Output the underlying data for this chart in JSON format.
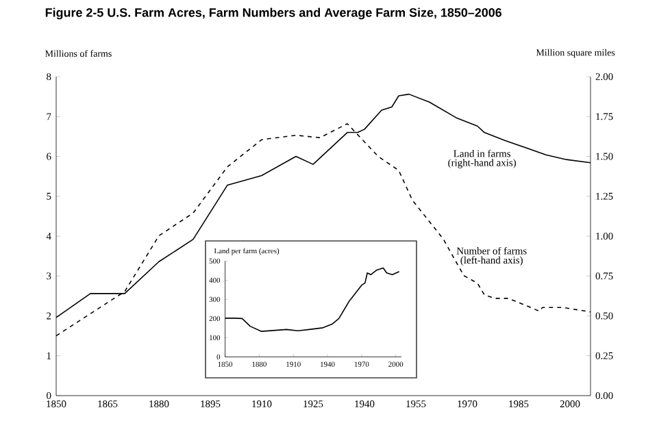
{
  "chart_data": [
    {
      "type": "line",
      "title": "Figure 2-5    U.S. Farm Acres, Farm Numbers and Average Farm Size, 1850–2006",
      "ylabel": "Millions of farms",
      "y2label": "Million square miles",
      "xlim": [
        1850,
        2006
      ],
      "xticks": [
        1850,
        1865,
        1880,
        1895,
        1910,
        1925,
        1940,
        1955,
        1970,
        1985,
        2000
      ],
      "ylim": [
        0,
        8
      ],
      "yticks": [
        0,
        1,
        2,
        3,
        4,
        5,
        6,
        7,
        8
      ],
      "y2lim": [
        0,
        2
      ],
      "y2ticks": [
        {
          "value": 0,
          "label": "0.00"
        },
        {
          "value": 0.25,
          "label": "0.25"
        },
        {
          "value": 0.5,
          "label": "0.50"
        },
        {
          "value": 0.75,
          "label": "0.75"
        },
        {
          "value": 1,
          "label": "1.00"
        },
        {
          "value": 1.25,
          "label": "1.25"
        },
        {
          "value": 1.5,
          "label": "1.50"
        },
        {
          "value": 1.75,
          "label": "1.75"
        },
        {
          "value": 2,
          "label": "2.00"
        }
      ],
      "annotations": [
        "(right-hand axis)",
        "(left-hand axis)"
      ],
      "series": [
        {
          "name": "Land in farms",
          "color": "#000000",
          "axis": "y2",
          "line_style": "solid",
          "x": [
            1850,
            1860,
            1870,
            1880,
            1890,
            1900,
            1910,
            1920,
            1925,
            1935,
            1938,
            1940,
            1945,
            1948,
            1950,
            1953,
            1959,
            1967,
            1973,
            1975,
            1981,
            1993,
            1999,
            2006
          ],
          "values": [
            0.49,
            0.64,
            0.64,
            0.84,
            0.98,
            1.32,
            1.38,
            1.5,
            1.45,
            1.65,
            1.65,
            1.67,
            1.79,
            1.81,
            1.88,
            1.89,
            1.84,
            1.74,
            1.69,
            1.65,
            1.6,
            1.51,
            1.48,
            1.46
          ]
        },
        {
          "name": "Number of farms",
          "color": "#000000",
          "axis": "y",
          "line_style": "dashed",
          "x": [
            1850,
            1870,
            1880,
            1890,
            1900,
            1910,
            1920,
            1927,
            1935,
            1944,
            1950,
            1954,
            1963,
            1969,
            1973,
            1975,
            1978,
            1982,
            1988,
            1991,
            1992,
            1998,
            2006
          ],
          "values": [
            1.5,
            2.61,
            4.01,
            4.58,
            5.74,
            6.42,
            6.53,
            6.47,
            6.82,
            6.0,
            5.65,
            4.9,
            3.93,
            3.01,
            2.82,
            2.53,
            2.44,
            2.44,
            2.23,
            2.12,
            2.21,
            2.21,
            2.1
          ]
        }
      ]
    },
    {
      "type": "line",
      "ylabel": "Land per farm (acres)",
      "xlim": [
        1850,
        2005
      ],
      "xticks": [
        1850,
        1880,
        1910,
        1940,
        1970,
        2000
      ],
      "ylim": [
        0,
        500
      ],
      "yticks": [
        0,
        100,
        200,
        300,
        400,
        500
      ],
      "series": [
        {
          "color": "#000000",
          "line_style": "solid",
          "x": [
            1850,
            1859,
            1865,
            1872,
            1882,
            1904,
            1914,
            1924,
            1936,
            1944,
            1950,
            1959,
            1970,
            1973,
            1975,
            1978,
            1983,
            1989,
            1992,
            1997,
            2003
          ],
          "values": [
            202,
            202,
            200,
            160,
            133,
            143,
            136,
            143,
            152,
            171,
            200,
            290,
            374,
            386,
            438,
            429,
            452,
            464,
            438,
            429,
            445
          ]
        }
      ]
    }
  ]
}
